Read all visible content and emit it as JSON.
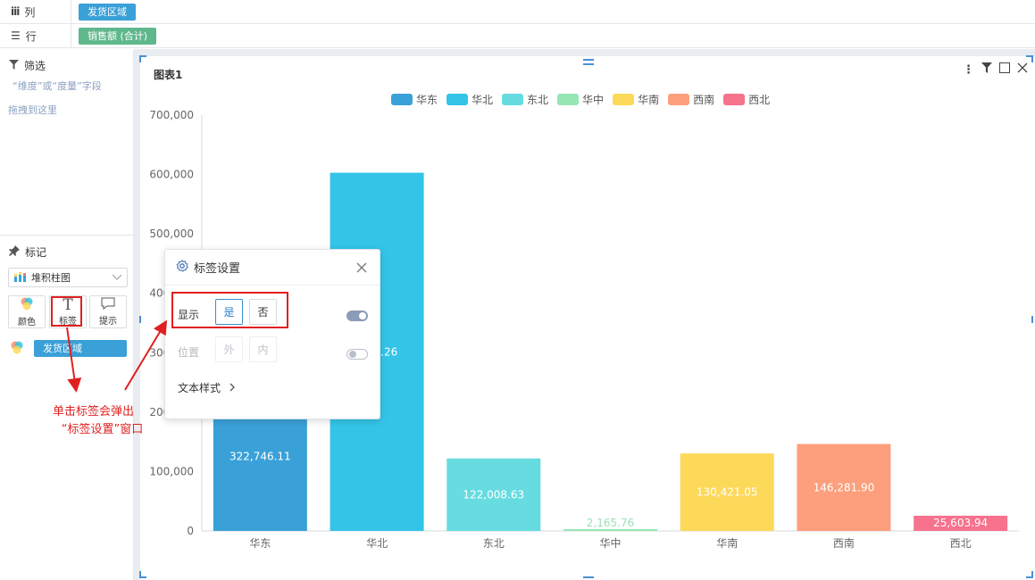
{
  "shelves": {
    "columns": {
      "label": "列",
      "pill": "发货区域"
    },
    "rows": {
      "label": "行",
      "pill": "销售额 (合计)"
    }
  },
  "filter": {
    "title": "筛选",
    "hint_line1": "“维度”或“度量”字段",
    "hint_line2": "拖拽到这里"
  },
  "marks": {
    "title": "标记",
    "chart_type": "堆积柱图",
    "buttons": {
      "color": "颜色",
      "label": "标签",
      "tooltip": "提示"
    },
    "color_field": "发货区域"
  },
  "chart_card": {
    "title": "图表1"
  },
  "popup": {
    "title": "标签设置",
    "show_label": "显示",
    "yes": "是",
    "no": "否",
    "position_label": "位置",
    "outside": "外",
    "inside": "内",
    "text_style": "文本样式",
    "show_on": true,
    "position_on": false
  },
  "annotation": {
    "line1": "单击标签会弹出",
    "line2": "“标签设置”窗口"
  },
  "chart_data": {
    "type": "bar",
    "categories": [
      "华东",
      "华北",
      "东北",
      "华中",
      "华南",
      "西南",
      "西北"
    ],
    "values": [
      322746.11,
      603007.26,
      122008.63,
      2165.76,
      130421.05,
      146281.9,
      25603.94
    ],
    "data_labels": [
      "322,746.11",
      "…07.26",
      "122,008.63",
      "2,165.76",
      "130,421.05",
      "146,281.90",
      "25,603.94"
    ],
    "legend": [
      "华东",
      "华北",
      "东北",
      "华中",
      "华南",
      "西南",
      "西北"
    ],
    "legend_position": "top",
    "colors": [
      "#3aa1d8",
      "#33c4e8",
      "#66dce1",
      "#96e6b4",
      "#fdd95a",
      "#fd9f7c",
      "#f6728d"
    ],
    "ylim": [
      0,
      700000
    ],
    "yticks": [
      "0",
      "100,000",
      "200,000",
      "300,000",
      "400,000",
      "500,000",
      "600,000",
      "700,000"
    ],
    "grid": false
  },
  "colors": {
    "accent": "#3aa0d8",
    "annotation": "#e02020"
  }
}
